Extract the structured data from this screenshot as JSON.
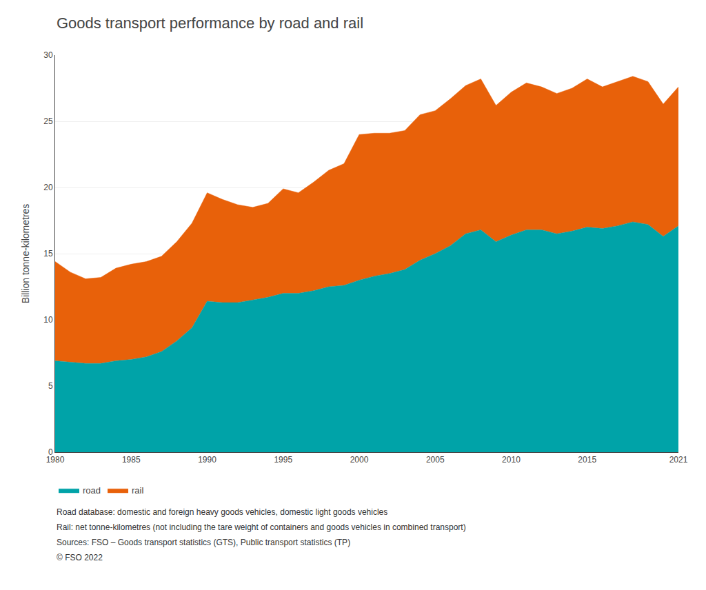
{
  "chart_data": {
    "type": "area",
    "stacked": true,
    "title": "Goods transport performance by road and rail",
    "ylabel": "Billion tonne-kilometres",
    "x": [
      1980,
      1981,
      1982,
      1983,
      1984,
      1985,
      1986,
      1987,
      1988,
      1989,
      1990,
      1991,
      1992,
      1993,
      1994,
      1995,
      1996,
      1997,
      1998,
      1999,
      2000,
      2001,
      2002,
      2003,
      2004,
      2005,
      2006,
      2007,
      2008,
      2009,
      2010,
      2011,
      2012,
      2013,
      2014,
      2015,
      2016,
      2017,
      2018,
      2019,
      2020,
      2021
    ],
    "series": [
      {
        "name": "road",
        "color": "#00A3A8",
        "values": [
          6.9,
          6.8,
          6.7,
          6.7,
          6.9,
          7.0,
          7.2,
          7.6,
          8.4,
          9.4,
          11.4,
          11.3,
          11.3,
          11.5,
          11.7,
          12.0,
          12.0,
          12.2,
          12.5,
          12.6,
          13.0,
          13.3,
          13.5,
          13.8,
          14.5,
          15.0,
          15.6,
          16.5,
          16.8,
          15.9,
          16.4,
          16.8,
          16.8,
          16.5,
          16.7,
          17.0,
          16.9,
          17.1,
          17.4,
          17.2,
          16.3,
          17.1
        ]
      },
      {
        "name": "rail",
        "color": "#E8610A",
        "values": [
          7.5,
          6.8,
          6.4,
          6.5,
          7.0,
          7.2,
          7.2,
          7.2,
          7.5,
          7.9,
          8.2,
          7.8,
          7.4,
          7.0,
          7.1,
          7.9,
          7.6,
          8.2,
          8.8,
          9.2,
          11.0,
          10.8,
          10.6,
          10.5,
          11.0,
          10.8,
          11.1,
          11.2,
          11.4,
          10.3,
          10.8,
          11.1,
          10.8,
          10.6,
          10.8,
          11.2,
          10.7,
          10.9,
          11.0,
          10.8,
          10.0,
          10.5
        ]
      }
    ],
    "xlim": [
      1980,
      2021
    ],
    "xticks": [
      1980,
      1985,
      1990,
      1995,
      2000,
      2005,
      2010,
      2015,
      2021
    ],
    "ylim": [
      0,
      30
    ],
    "yticks": [
      0,
      5,
      10,
      15,
      20,
      25,
      30
    ],
    "grid": true,
    "legend": "bottom",
    "annotations": [
      "Road database: domestic and foreign heavy goods vehicles, domestic light goods vehicles",
      "Rail: net tonne-kilometres (not including the tare weight of containers and goods vehicles in combined transport)",
      "Sources: FSO – Goods transport statistics (GTS), Public transport statistics (TP)",
      "© FSO 2022"
    ]
  }
}
